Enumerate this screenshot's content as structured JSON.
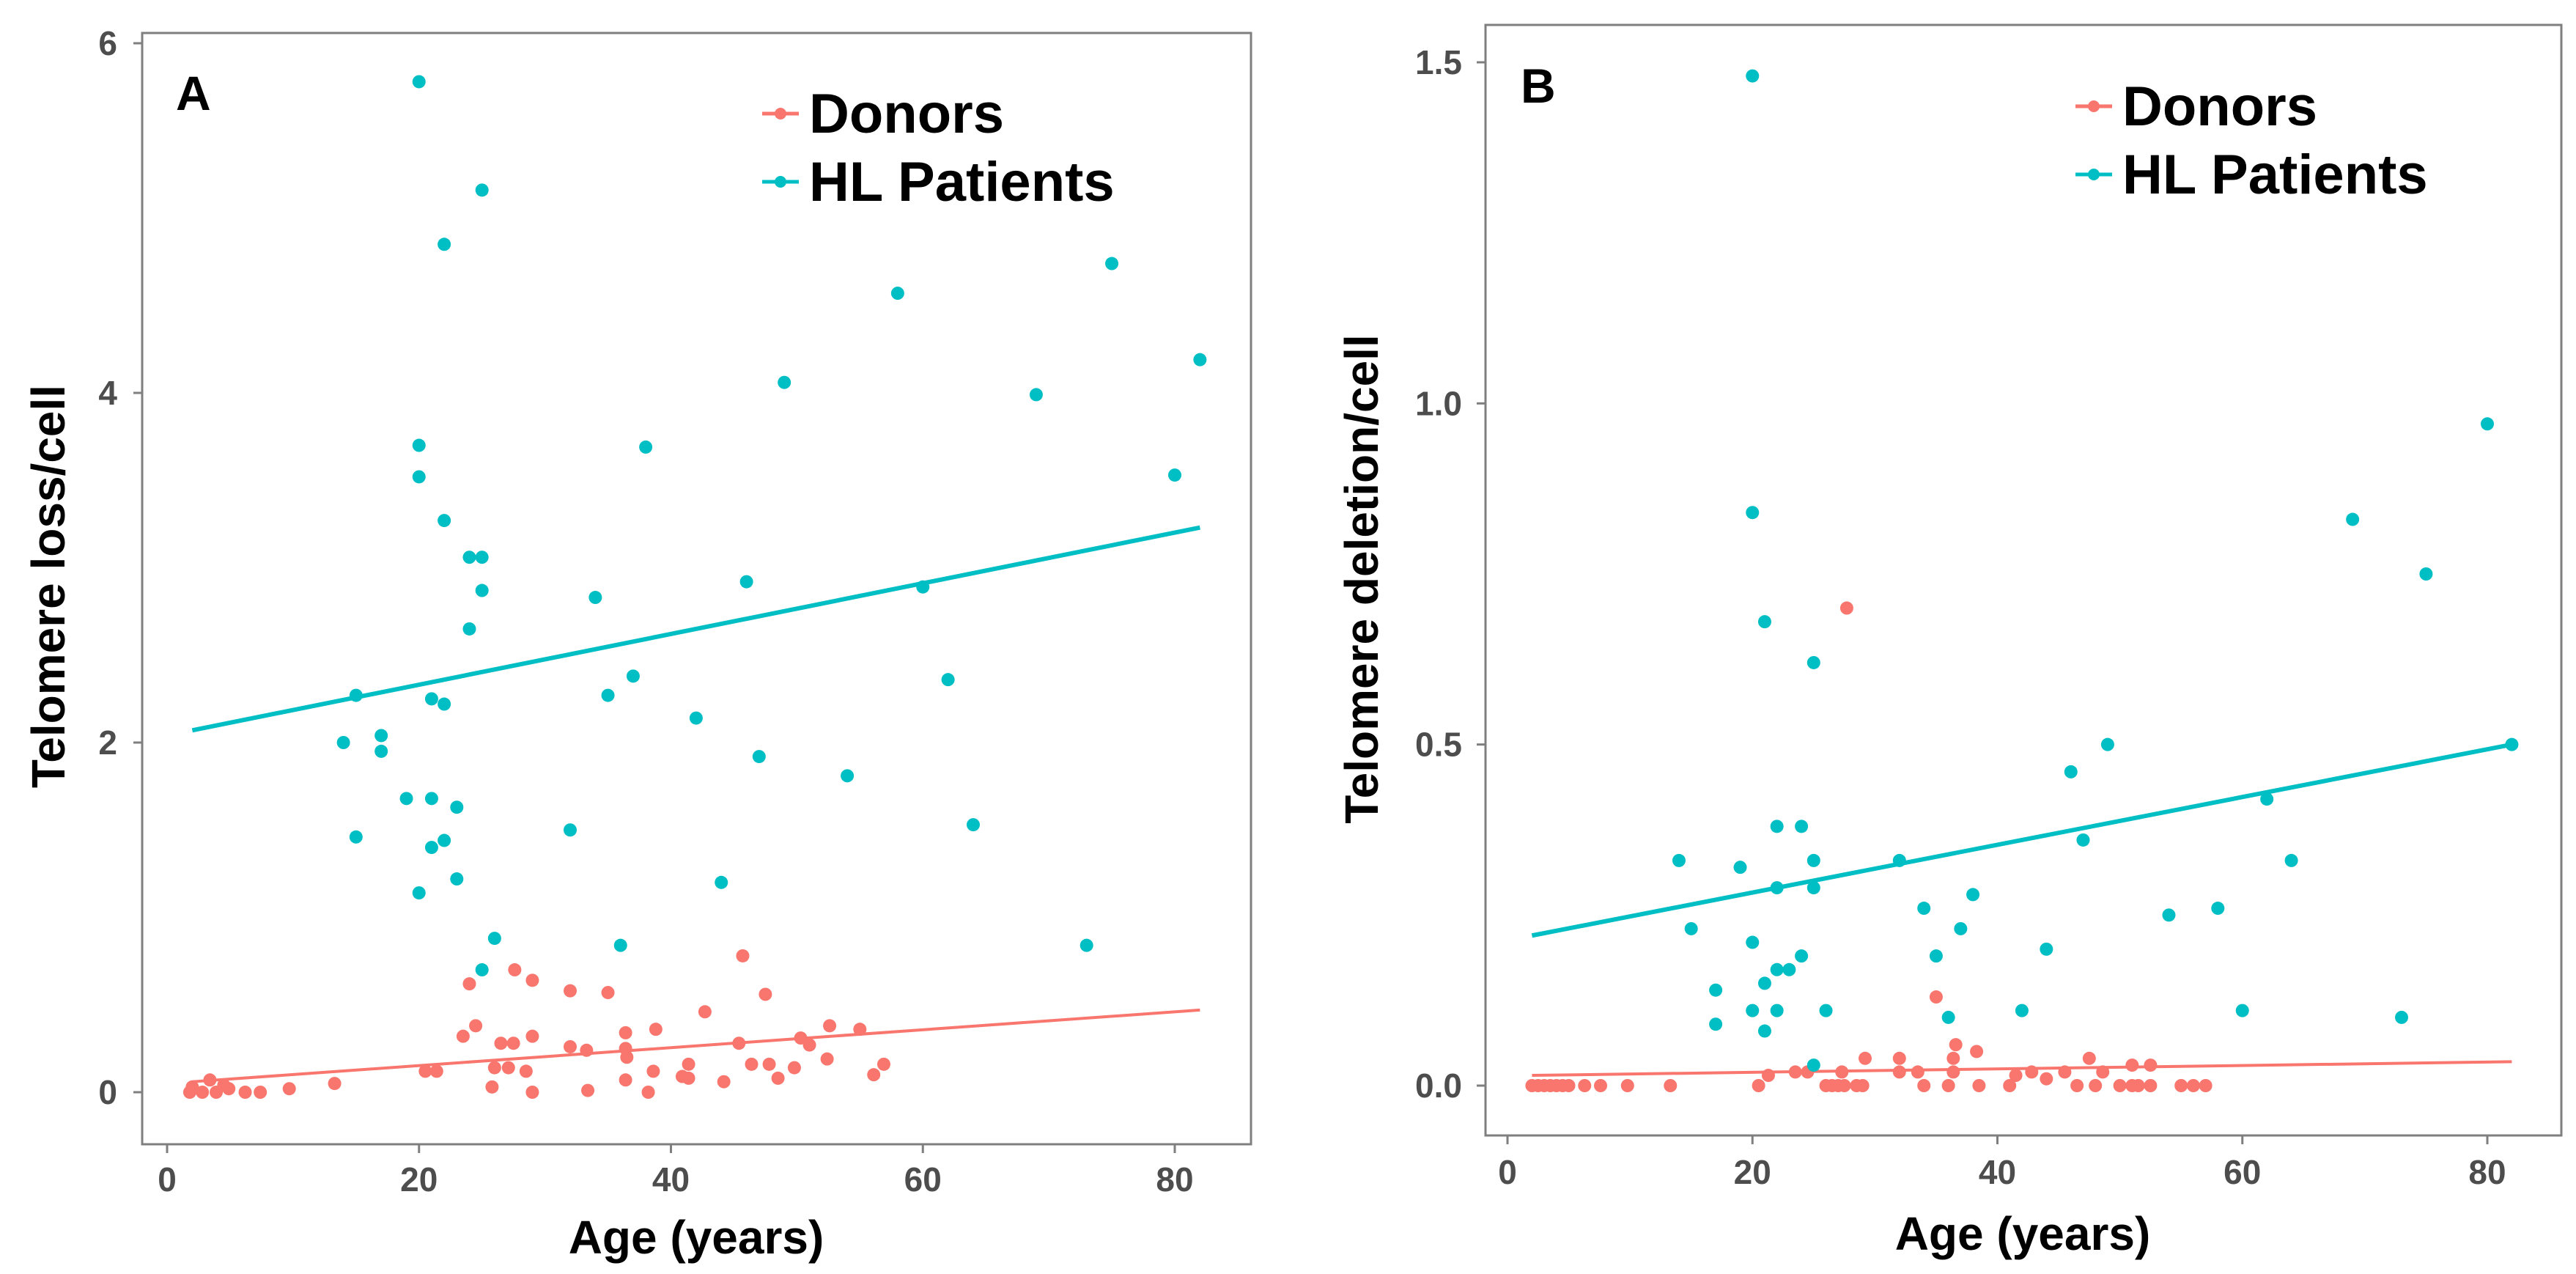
{
  "colors": {
    "donors": "#F8766D",
    "patients": "#00BFC4"
  },
  "chart_data": [
    {
      "type": "scatter",
      "panel_label": "A",
      "xlabel": "Age (years)",
      "ylabel": "Telomere loss/cell",
      "xlim": [
        0,
        82
      ],
      "ylim": [
        -0.2,
        6
      ],
      "xticks": [
        0,
        20,
        40,
        60,
        80
      ],
      "xtick_labels": [
        "0",
        "20",
        "40",
        "60",
        "80"
      ],
      "yticks": [
        0,
        2,
        4,
        6
      ],
      "ytick_labels": [
        "0",
        "2",
        "4",
        "6"
      ],
      "grid": false,
      "legend_position": "top-right",
      "legend": [
        "Donors",
        "HL Patients"
      ],
      "series": [
        {
          "name": "Donors",
          "fit_line": [
            [
              2,
              0.06
            ],
            [
              82,
              0.47
            ]
          ],
          "points": [
            [
              24,
              0.62
            ],
            [
              27.6,
              0.7
            ],
            [
              29,
              0.64
            ],
            [
              32,
              0.58
            ],
            [
              35,
              0.57
            ],
            [
              45.7,
              0.78
            ],
            [
              47.5,
              0.56
            ],
            [
              42.7,
              0.46
            ],
            [
              23.5,
              0.32
            ],
            [
              24.5,
              0.38
            ],
            [
              26.5,
              0.28
            ],
            [
              27.5,
              0.28
            ],
            [
              29,
              0.32
            ],
            [
              32,
              0.26
            ],
            [
              33.3,
              0.24
            ],
            [
              36.4,
              0.34
            ],
            [
              36.4,
              0.25
            ],
            [
              36.5,
              0.2
            ],
            [
              38.8,
              0.36
            ],
            [
              45.4,
              0.28
            ],
            [
              50.3,
              0.31
            ],
            [
              51,
              0.27
            ],
            [
              52.6,
              0.38
            ],
            [
              55,
              0.36
            ],
            [
              52.4,
              0.19
            ],
            [
              56.9,
              0.16
            ],
            [
              56.1,
              0.1
            ],
            [
              26,
              0.14
            ],
            [
              27.1,
              0.14
            ],
            [
              28.5,
              0.12
            ],
            [
              20.5,
              0.12
            ],
            [
              21.4,
              0.12
            ],
            [
              38.6,
              0.12
            ],
            [
              41.4,
              0.16
            ],
            [
              40.9,
              0.09
            ],
            [
              41.4,
              0.08
            ],
            [
              46.4,
              0.16
            ],
            [
              47.8,
              0.16
            ],
            [
              48.5,
              0.08
            ],
            [
              49.8,
              0.14
            ],
            [
              44.2,
              0.06
            ],
            [
              36.4,
              0.07
            ],
            [
              33.4,
              0.01
            ],
            [
              29,
              0
            ],
            [
              38.2,
              0
            ],
            [
              25.8,
              0.03
            ],
            [
              13.3,
              0.05
            ],
            [
              9.7,
              0.02
            ],
            [
              7.4,
              0
            ],
            [
              6.2,
              0
            ],
            [
              4.9,
              0.02
            ],
            [
              3.4,
              0.07
            ],
            [
              2,
              0.03
            ],
            [
              2.8,
              0
            ],
            [
              3.9,
              0
            ],
            [
              4.5,
              0.04
            ],
            [
              1.8,
              0
            ]
          ]
        },
        {
          "name": "HL Patients",
          "fit_line": [
            [
              2,
              2.07
            ],
            [
              82,
              3.23
            ]
          ],
          "points": [
            [
              20,
              5.78
            ],
            [
              25,
              5.16
            ],
            [
              22,
              4.85
            ],
            [
              75,
              4.74
            ],
            [
              58,
              4.57
            ],
            [
              82,
              4.19
            ],
            [
              49,
              4.06
            ],
            [
              69,
              3.99
            ],
            [
              20,
              3.7
            ],
            [
              38,
              3.69
            ],
            [
              20,
              3.52
            ],
            [
              80,
              3.53
            ],
            [
              22,
              3.27
            ],
            [
              24,
              3.06
            ],
            [
              25,
              3.06
            ],
            [
              25,
              2.87
            ],
            [
              46,
              2.92
            ],
            [
              34,
              2.83
            ],
            [
              60,
              2.89
            ],
            [
              24,
              2.65
            ],
            [
              37,
              2.38
            ],
            [
              62,
              2.36
            ],
            [
              15,
              2.27
            ],
            [
              35,
              2.27
            ],
            [
              21,
              2.25
            ],
            [
              22,
              2.22
            ],
            [
              42,
              2.14
            ],
            [
              17,
              2.04
            ],
            [
              17,
              1.95
            ],
            [
              14,
              2.0
            ],
            [
              47,
              1.92
            ],
            [
              54,
              1.81
            ],
            [
              19,
              1.68
            ],
            [
              21,
              1.68
            ],
            [
              23,
              1.63
            ],
            [
              64,
              1.53
            ],
            [
              32,
              1.5
            ],
            [
              15,
              1.46
            ],
            [
              22,
              1.44
            ],
            [
              21,
              1.4
            ],
            [
              23,
              1.22
            ],
            [
              44,
              1.2
            ],
            [
              20,
              1.14
            ],
            [
              26,
              0.88
            ],
            [
              36,
              0.84
            ],
            [
              73,
              0.84
            ],
            [
              25,
              0.7
            ]
          ]
        }
      ]
    },
    {
      "type": "scatter",
      "panel_label": "B",
      "xlabel": "Age (years)",
      "ylabel": "Telomere deletion/cell",
      "xlim": [
        0,
        82
      ],
      "ylim": [
        -0.08,
        1.55
      ],
      "xticks": [
        0,
        20,
        40,
        60,
        80
      ],
      "xtick_labels": [
        "0",
        "20",
        "40",
        "60",
        "80"
      ],
      "yticks": [
        0,
        0.5,
        1.0,
        1.5
      ],
      "ytick_labels": [
        "0.0",
        "0.5",
        "1.0",
        "1.5"
      ],
      "grid": false,
      "legend_position": "top-right",
      "legend": [
        "Donors",
        "HL Patients"
      ],
      "series": [
        {
          "name": "Donors",
          "fit_line": [
            [
              2,
              0.015
            ],
            [
              82,
              0.035
            ]
          ],
          "points": [
            [
              27.7,
              0.7
            ],
            [
              35,
              0.13
            ],
            [
              36.6,
              0.06
            ],
            [
              38.3,
              0.05
            ],
            [
              29.2,
              0.04
            ],
            [
              32,
              0.04
            ],
            [
              36.4,
              0.04
            ],
            [
              47.5,
              0.04
            ],
            [
              51,
              0.03
            ],
            [
              52.5,
              0.03
            ],
            [
              21.3,
              0.015
            ],
            [
              23.5,
              0.02
            ],
            [
              24.5,
              0.02
            ],
            [
              32,
              0.02
            ],
            [
              33.5,
              0.02
            ],
            [
              36.4,
              0.02
            ],
            [
              27.3,
              0.02
            ],
            [
              41.5,
              0.015
            ],
            [
              42.8,
              0.02
            ],
            [
              45.5,
              0.02
            ],
            [
              48.6,
              0.02
            ],
            [
              44,
              0.01
            ],
            [
              2,
              0
            ],
            [
              2.5,
              0
            ],
            [
              3,
              0
            ],
            [
              3.5,
              0
            ],
            [
              4,
              0
            ],
            [
              4.5,
              0
            ],
            [
              5,
              0
            ],
            [
              6.3,
              0
            ],
            [
              7.6,
              0
            ],
            [
              9.8,
              0
            ],
            [
              13.3,
              0
            ],
            [
              20.5,
              0
            ],
            [
              26,
              0
            ],
            [
              26.5,
              0
            ],
            [
              27,
              0
            ],
            [
              27.5,
              0
            ],
            [
              28.5,
              0
            ],
            [
              29,
              0
            ],
            [
              34,
              0
            ],
            [
              36,
              0
            ],
            [
              38.5,
              0
            ],
            [
              41,
              0
            ],
            [
              46.5,
              0
            ],
            [
              48,
              0
            ],
            [
              50,
              0
            ],
            [
              51,
              0
            ],
            [
              51.5,
              0
            ],
            [
              52.5,
              0
            ],
            [
              55,
              0
            ],
            [
              56,
              0
            ],
            [
              57,
              0
            ]
          ]
        },
        {
          "name": "HL Patients",
          "fit_line": [
            [
              2,
              0.22
            ],
            [
              82,
              0.5
            ]
          ],
          "points": [
            [
              20,
              1.48
            ],
            [
              80,
              0.97
            ],
            [
              20,
              0.84
            ],
            [
              69,
              0.83
            ],
            [
              75,
              0.75
            ],
            [
              21,
              0.68
            ],
            [
              25,
              0.62
            ],
            [
              49,
              0.5
            ],
            [
              82,
              0.5
            ],
            [
              46,
              0.46
            ],
            [
              62,
              0.42
            ],
            [
              22,
              0.38
            ],
            [
              24,
              0.38
            ],
            [
              47,
              0.36
            ],
            [
              14,
              0.33
            ],
            [
              25,
              0.33
            ],
            [
              32,
              0.33
            ],
            [
              64,
              0.33
            ],
            [
              19,
              0.32
            ],
            [
              22,
              0.29
            ],
            [
              25,
              0.29
            ],
            [
              38,
              0.28
            ],
            [
              34,
              0.26
            ],
            [
              58,
              0.26
            ],
            [
              54,
              0.25
            ],
            [
              15,
              0.23
            ],
            [
              37,
              0.23
            ],
            [
              20,
              0.21
            ],
            [
              44,
              0.2
            ],
            [
              35,
              0.19
            ],
            [
              24,
              0.19
            ],
            [
              22,
              0.17
            ],
            [
              23,
              0.17
            ],
            [
              17,
              0.14
            ],
            [
              21,
              0.15
            ],
            [
              26,
              0.11
            ],
            [
              22,
              0.11
            ],
            [
              42,
              0.11
            ],
            [
              20,
              0.11
            ],
            [
              60,
              0.11
            ],
            [
              36,
              0.1
            ],
            [
              73,
              0.1
            ],
            [
              17,
              0.09
            ],
            [
              21,
              0.08
            ],
            [
              25,
              0.03
            ]
          ]
        }
      ]
    }
  ]
}
